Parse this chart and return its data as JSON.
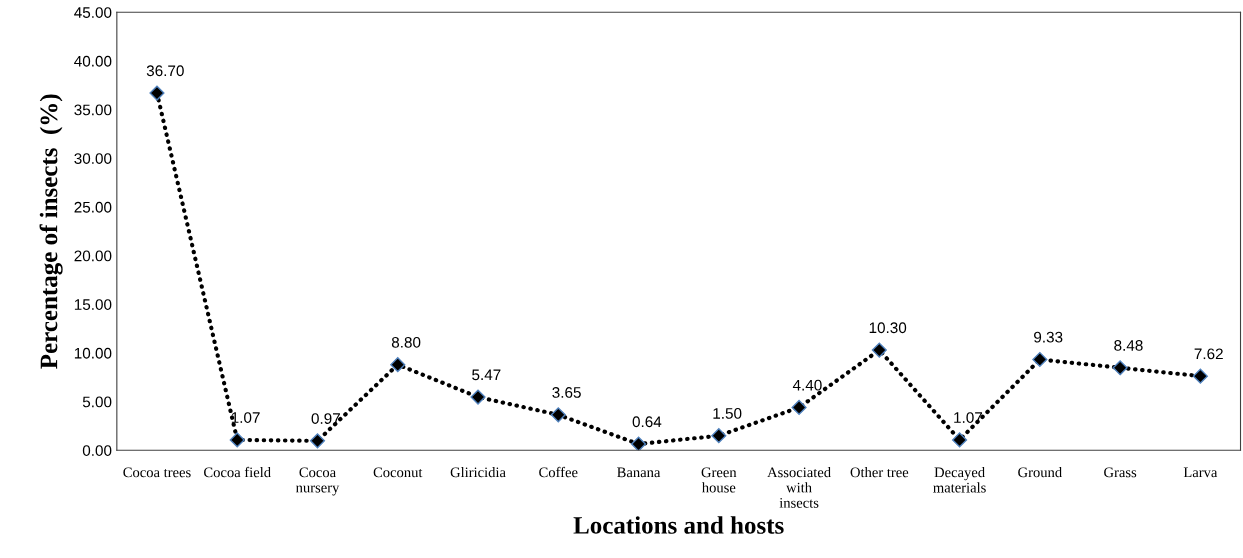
{
  "chart_data": {
    "type": "line",
    "xlabel": "Locations and hosts",
    "ylabel": "Percentage of insects  (%)",
    "categories": [
      "Cocoa trees",
      "Cocoa field",
      "Cocoa\nnursery",
      "Coconut",
      "Gliricidia",
      "Coffee",
      "Banana",
      "Green\nhouse",
      "Associated\nwith\ninsects",
      "Other tree",
      "Decayed\nmaterials",
      "Ground",
      "Grass",
      "Larva"
    ],
    "series": [
      {
        "color": "#000000",
        "values": [
          36.7,
          1.07,
          0.97,
          8.8,
          5.47,
          3.65,
          0.64,
          1.5,
          4.4,
          10.3,
          1.07,
          9.33,
          8.48,
          7.62
        ],
        "value_labels": [
          "36.70",
          "1.07",
          "0.97",
          "8.80",
          "5.47",
          "3.65",
          "0.64",
          "1.50",
          "4.40",
          "10.30",
          "1.07",
          "9.33",
          "8.48",
          "7.62"
        ]
      }
    ],
    "ylim": [
      0,
      45
    ],
    "yticks": [
      {
        "value": 0,
        "label": "0.00"
      },
      {
        "value": 5,
        "label": "5.00"
      },
      {
        "value": 10,
        "label": "10.00"
      },
      {
        "value": 15,
        "label": "15.00"
      },
      {
        "value": 20,
        "label": "20.00"
      },
      {
        "value": 25,
        "label": "25.00"
      },
      {
        "value": 30,
        "label": "30.00"
      },
      {
        "value": 35,
        "label": "35.00"
      },
      {
        "value": 40,
        "label": "40.00"
      },
      {
        "value": 45,
        "label": "45.00"
      }
    ],
    "grid": false,
    "legend": false,
    "marker": "diamond",
    "line_style": "dotted"
  }
}
